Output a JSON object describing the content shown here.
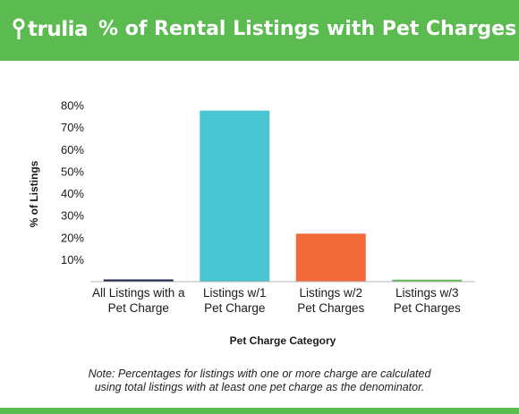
{
  "header": {
    "logo_text": "trulia",
    "title": "% of Rental Listings with Pet Charges"
  },
  "colors": {
    "brand_green": "#5cbb50"
  },
  "chart_data": {
    "type": "bar",
    "xlabel": "Pet Charge Category",
    "ylabel": "% of Listings",
    "ylim": [
      0,
      80
    ],
    "y_ticks": [
      10,
      20,
      30,
      40,
      50,
      60,
      70,
      80
    ],
    "y_tick_labels": [
      "10%",
      "20%",
      "30%",
      "40%",
      "50%",
      "60%",
      "70%",
      "80%"
    ],
    "grid": false,
    "categories": [
      [
        "All Listings with a",
        "Pet Charge"
      ],
      [
        "Listings w/1",
        "Pet Charge"
      ],
      [
        "Listings w/2",
        "Pet Charges"
      ],
      [
        "Listings w/3",
        "Pet Charges"
      ]
    ],
    "values": [
      1,
      77.7,
      21.8,
      0.9
    ],
    "bar_colors": [
      "#1d1f4f",
      "#4ac6d2",
      "#f26a3a",
      "#5cbb50"
    ]
  },
  "note": {
    "lines": [
      "Note: Percentages for listings with one or more charge are calculated",
      "using total listings with at least one pet charge as the denominator."
    ]
  }
}
